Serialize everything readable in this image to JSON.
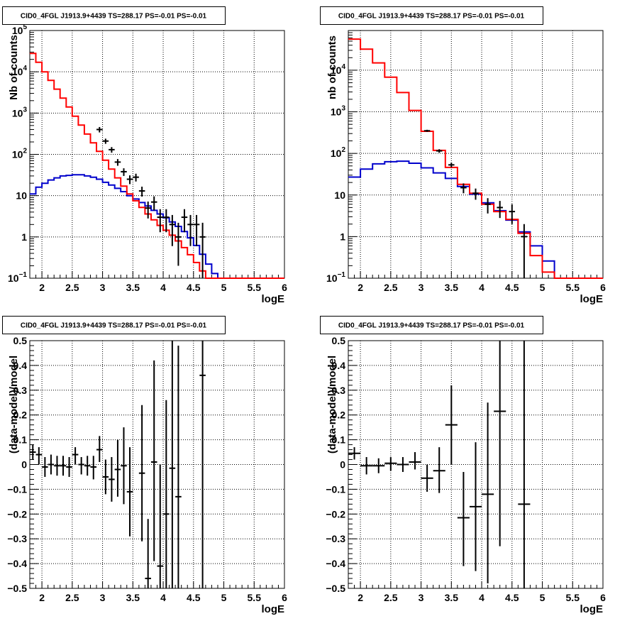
{
  "colors": {
    "data": "#000000",
    "total": "#ff0000",
    "background": "#0000cc",
    "grid": "#000000"
  },
  "chart_data": [
    {
      "id": "top-left",
      "type": "line",
      "title": "CID0_4FGL J1913.9+4439 TS=288.17 PS=-0.01 PS=-0.01",
      "xlabel": "logE",
      "ylabel": "Nb of counts",
      "xlim": [
        1.8,
        6
      ],
      "ylim": [
        0.1,
        100000
      ],
      "yscale": "log",
      "grid": true,
      "x_ticks": [
        "2",
        "2.5",
        "3",
        "3.5",
        "4",
        "4.5",
        "5",
        "5.5",
        "6"
      ],
      "y_ticks": [
        {
          "v": 0.1,
          "b": "10",
          "e": "−1"
        },
        {
          "v": 1,
          "b": "1",
          "e": ""
        },
        {
          "v": 10,
          "b": "10",
          "e": ""
        },
        {
          "v": 100,
          "b": "10",
          "e": "2"
        },
        {
          "v": 1000,
          "b": "10",
          "e": "3"
        },
        {
          "v": 10000,
          "b": "10",
          "e": "4"
        },
        {
          "v": 100000,
          "b": "10",
          "e": "5"
        }
      ],
      "bin_edges": [
        1.8,
        1.9,
        2.0,
        2.1,
        2.2,
        2.3,
        2.4,
        2.5,
        2.6,
        2.7,
        2.8,
        2.9,
        3.0,
        3.1,
        3.2,
        3.3,
        3.4,
        3.5,
        3.6,
        3.7,
        3.8,
        3.9,
        4.0,
        4.1,
        4.2,
        4.3,
        4.4,
        4.5,
        4.6,
        4.7,
        4.8,
        4.9,
        5.0,
        5.1,
        5.2,
        5.3,
        5.4,
        5.5,
        5.6,
        5.7,
        5.8,
        5.9,
        6.0
      ],
      "series": [
        {
          "name": "model",
          "color": "#ff0000",
          "values": [
            28000,
            17000,
            10000,
            6200,
            3800,
            2300,
            1400,
            840,
            510,
            310,
            190,
            118,
            72,
            44,
            27,
            17,
            11,
            7.5,
            5.2,
            3.6,
            2.6,
            1.9,
            1.45,
            1.1,
            0.8,
            0.55,
            0.37,
            0.24,
            0.15,
            0.1,
            0.1,
            0.1,
            0.1,
            0.1,
            0.1,
            0.1,
            0.1,
            0.1,
            0.1,
            0.1,
            0.1,
            0.1
          ]
        },
        {
          "name": "background",
          "color": "#0000cc",
          "values": [
            11,
            16,
            20,
            24,
            27,
            30,
            31,
            32,
            32,
            30,
            28,
            25,
            21,
            18,
            15,
            12.5,
            10,
            8.3,
            6.8,
            5.6,
            4.4,
            3.6,
            2.9,
            2.3,
            1.8,
            1.35,
            0.95,
            0.62,
            0.38,
            0.22,
            0.13,
            0.1,
            0.1,
            0.1,
            0.1,
            0.1,
            0.1,
            0.1,
            0.1,
            0.1,
            0.1,
            0.1
          ]
        }
      ],
      "data_points": [
        {
          "x": 2.95,
          "y": 400,
          "ylo": 340,
          "yhi": 460
        },
        {
          "x": 3.05,
          "y": 210,
          "ylo": 180,
          "yhi": 240
        },
        {
          "x": 3.15,
          "y": 130,
          "ylo": 110,
          "yhi": 150
        },
        {
          "x": 3.25,
          "y": 65,
          "ylo": 53,
          "yhi": 77
        },
        {
          "x": 3.35,
          "y": 38,
          "ylo": 30,
          "yhi": 46
        },
        {
          "x": 3.45,
          "y": 25,
          "ylo": 19,
          "yhi": 31
        },
        {
          "x": 3.55,
          "y": 28,
          "ylo": 22,
          "yhi": 34
        },
        {
          "x": 3.65,
          "y": 13,
          "ylo": 9.5,
          "yhi": 16.5
        },
        {
          "x": 3.75,
          "y": 5,
          "ylo": 2.8,
          "yhi": 7.2
        },
        {
          "x": 3.85,
          "y": 7,
          "ylo": 4.4,
          "yhi": 9.6
        },
        {
          "x": 3.95,
          "y": 3,
          "ylo": 1.3,
          "yhi": 4.7
        },
        {
          "x": 4.05,
          "y": 3,
          "ylo": 1.3,
          "yhi": 4.7
        },
        {
          "x": 4.15,
          "y": 2,
          "ylo": 0.6,
          "yhi": 3.4
        },
        {
          "x": 4.25,
          "y": 1,
          "ylo": 0.2,
          "yhi": 2.2
        },
        {
          "x": 4.35,
          "y": 3,
          "ylo": 1.3,
          "yhi": 4.7
        },
        {
          "x": 4.45,
          "y": 2,
          "ylo": 0.6,
          "yhi": 3.4
        },
        {
          "x": 4.55,
          "y": 2,
          "ylo": 0.6,
          "yhi": 3.4
        },
        {
          "x": 4.65,
          "y": 1,
          "ylo": 0.1,
          "yhi": 2.2
        }
      ]
    },
    {
      "id": "top-right",
      "type": "line",
      "title": "CID0_4FGL J1913.9+4439 TS=288.17 PS=-0.01 PS=-0.01",
      "xlabel": "logE",
      "ylabel": "nb of counts",
      "xlim": [
        1.8,
        6
      ],
      "ylim": [
        0.1,
        90000
      ],
      "yscale": "log",
      "grid": true,
      "x_ticks": [
        "2",
        "2.5",
        "3",
        "3.5",
        "4",
        "4.5",
        "5",
        "5.5",
        "6"
      ],
      "y_ticks": [
        {
          "v": 0.1,
          "b": "10",
          "e": "−1"
        },
        {
          "v": 1,
          "b": "1",
          "e": ""
        },
        {
          "v": 10,
          "b": "10",
          "e": ""
        },
        {
          "v": 100,
          "b": "10",
          "e": "2"
        },
        {
          "v": 1000,
          "b": "10",
          "e": "3"
        },
        {
          "v": 10000,
          "b": "10",
          "e": "4"
        }
      ],
      "bin_edges": [
        1.8,
        2.0,
        2.2,
        2.4,
        2.6,
        2.8,
        3.0,
        3.2,
        3.4,
        3.6,
        3.8,
        4.0,
        4.2,
        4.4,
        4.6,
        4.8,
        5.0,
        5.2,
        5.4,
        5.6,
        5.8,
        6.0
      ],
      "series": [
        {
          "name": "model",
          "color": "#ff0000",
          "values": [
            56000,
            32000,
            15000,
            6800,
            2900,
            1080,
            340,
            118,
            46,
            18,
            11,
            6,
            4,
            2.6,
            1.2,
            0.35,
            0.14,
            0.1,
            0.1,
            0.1,
            0.1
          ]
        },
        {
          "name": "background",
          "color": "#0000cc",
          "values": [
            27,
            42,
            56,
            63,
            65,
            58,
            45,
            34,
            25,
            16,
            10.5,
            6.5,
            4.2,
            2.5,
            1.3,
            0.6,
            0.26,
            0.1,
            0.1,
            0.1,
            0.1
          ]
        }
      ],
      "data_points": [
        {
          "x": 3.1,
          "y": 350,
          "ylo": 330,
          "yhi": 370
        },
        {
          "x": 3.3,
          "y": 115,
          "ylo": 104,
          "yhi": 126
        },
        {
          "x": 3.5,
          "y": 53,
          "ylo": 46,
          "yhi": 60
        },
        {
          "x": 3.7,
          "y": 15,
          "ylo": 11,
          "yhi": 19
        },
        {
          "x": 3.9,
          "y": 11,
          "ylo": 7.7,
          "yhi": 14.3
        },
        {
          "x": 4.1,
          "y": 6,
          "ylo": 3.6,
          "yhi": 8.4
        },
        {
          "x": 4.3,
          "y": 5,
          "ylo": 2.8,
          "yhi": 7.2
        },
        {
          "x": 4.5,
          "y": 4,
          "ylo": 2,
          "yhi": 6
        },
        {
          "x": 4.7,
          "y": 1,
          "ylo": 0.1,
          "yhi": 2
        }
      ]
    },
    {
      "id": "bottom-left",
      "type": "scatter",
      "title": "CID0_4FGL J1913.9+4439 TS=288.17 PS=-0.01 PS=-0.01",
      "xlabel": "logE",
      "ylabel": "(data-model)/model",
      "xlim": [
        1.8,
        6
      ],
      "ylim": [
        -0.5,
        0.5
      ],
      "yscale": "linear",
      "grid": true,
      "x_ticks": [
        "2",
        "2.5",
        "3",
        "3.5",
        "4",
        "4.5",
        "5",
        "5.5",
        "6"
      ],
      "y_ticks": [
        {
          "v": -0.5,
          "b": "−0.5",
          "e": ""
        },
        {
          "v": -0.4,
          "b": "−0.4",
          "e": ""
        },
        {
          "v": -0.3,
          "b": "−0.3",
          "e": ""
        },
        {
          "v": -0.2,
          "b": "−0.2",
          "e": ""
        },
        {
          "v": -0.1,
          "b": "−0.1",
          "e": ""
        },
        {
          "v": 0,
          "b": "0",
          "e": ""
        },
        {
          "v": 0.1,
          "b": "0.1",
          "e": ""
        },
        {
          "v": 0.2,
          "b": "0.2",
          "e": ""
        },
        {
          "v": 0.3,
          "b": "0.3",
          "e": ""
        },
        {
          "v": 0.4,
          "b": "0.4",
          "e": ""
        },
        {
          "v": 0.5,
          "b": "0.5",
          "e": ""
        }
      ],
      "data_points": [
        {
          "x": 1.85,
          "y": 0.05,
          "ylo": 0.02,
          "yhi": 0.08,
          "xw": 0.05
        },
        {
          "x": 1.95,
          "y": 0.04,
          "ylo": 0.0,
          "yhi": 0.07,
          "xw": 0.05
        },
        {
          "x": 2.05,
          "y": -0.01,
          "ylo": -0.05,
          "yhi": 0.03,
          "xw": 0.05
        },
        {
          "x": 2.15,
          "y": 0.0,
          "ylo": -0.04,
          "yhi": 0.04,
          "xw": 0.05
        },
        {
          "x": 2.25,
          "y": -0.005,
          "ylo": -0.045,
          "yhi": 0.035,
          "xw": 0.05
        },
        {
          "x": 2.35,
          "y": -0.005,
          "ylo": -0.045,
          "yhi": 0.035,
          "xw": 0.05
        },
        {
          "x": 2.45,
          "y": -0.01,
          "ylo": -0.05,
          "yhi": 0.03,
          "xw": 0.05
        },
        {
          "x": 2.55,
          "y": 0.04,
          "ylo": 0.0,
          "yhi": 0.07,
          "xw": 0.05
        },
        {
          "x": 2.65,
          "y": 0.0,
          "ylo": -0.04,
          "yhi": 0.03,
          "xw": 0.05
        },
        {
          "x": 2.75,
          "y": -0.005,
          "ylo": -0.045,
          "yhi": 0.035,
          "xw": 0.05
        },
        {
          "x": 2.85,
          "y": -0.01,
          "ylo": -0.06,
          "yhi": 0.035,
          "xw": 0.05
        },
        {
          "x": 2.95,
          "y": 0.06,
          "ylo": 0.01,
          "yhi": 0.115,
          "xw": 0.05
        },
        {
          "x": 3.05,
          "y": -0.05,
          "ylo": -0.12,
          "yhi": 0.02,
          "xw": 0.05
        },
        {
          "x": 3.15,
          "y": -0.06,
          "ylo": -0.15,
          "yhi": 0.03,
          "xw": 0.05
        },
        {
          "x": 3.25,
          "y": -0.02,
          "ylo": -0.13,
          "yhi": 0.1,
          "xw": 0.05
        },
        {
          "x": 3.35,
          "y": -0.005,
          "ylo": -0.16,
          "yhi": 0.15,
          "xw": 0.05
        },
        {
          "x": 3.45,
          "y": -0.11,
          "ylo": -0.29,
          "yhi": 0.07,
          "xw": 0.05
        },
        {
          "x": 3.65,
          "y": -0.035,
          "ylo": -0.31,
          "yhi": 0.24,
          "xw": 0.05
        },
        {
          "x": 3.75,
          "y": -0.46,
          "ylo": -0.67,
          "yhi": -0.22,
          "xw": 0.05
        },
        {
          "x": 3.85,
          "y": 0.01,
          "ylo": -0.39,
          "yhi": 0.42,
          "xw": 0.05
        },
        {
          "x": 3.95,
          "y": -0.41,
          "ylo": -0.82,
          "yhi": 0.0,
          "xw": 0.05
        },
        {
          "x": 4.05,
          "y": -0.2,
          "ylo": -0.66,
          "yhi": 0.26,
          "xw": 0.05
        },
        {
          "x": 4.15,
          "y": -0.015,
          "ylo": -0.55,
          "yhi": 0.52,
          "xw": 0.05
        },
        {
          "x": 4.25,
          "y": -0.13,
          "ylo": -0.74,
          "yhi": 0.48,
          "xw": 0.05
        },
        {
          "x": 4.65,
          "y": 0.36,
          "ylo": -0.6,
          "yhi": 1.3,
          "xw": 0.05
        }
      ]
    },
    {
      "id": "bottom-right",
      "type": "scatter",
      "title": "CID0_4FGL J1913.9+4439 TS=288.17 PS=-0.01 PS=-0.01",
      "xlabel": "logE",
      "ylabel": "(data-model)/model",
      "xlim": [
        1.8,
        6
      ],
      "ylim": [
        -0.5,
        0.5
      ],
      "yscale": "linear",
      "grid": true,
      "x_ticks": [
        "2",
        "2.5",
        "3",
        "3.5",
        "4",
        "4.5",
        "5",
        "5.5",
        "6"
      ],
      "y_ticks": [
        {
          "v": -0.5,
          "b": "−0.5",
          "e": ""
        },
        {
          "v": -0.4,
          "b": "−0.4",
          "e": ""
        },
        {
          "v": -0.3,
          "b": "−0.3",
          "e": ""
        },
        {
          "v": -0.2,
          "b": "−0.2",
          "e": ""
        },
        {
          "v": -0.1,
          "b": "−0.1",
          "e": ""
        },
        {
          "v": 0,
          "b": "0",
          "e": ""
        },
        {
          "v": 0.1,
          "b": "0.1",
          "e": ""
        },
        {
          "v": 0.2,
          "b": "0.2",
          "e": ""
        },
        {
          "v": 0.3,
          "b": "0.3",
          "e": ""
        },
        {
          "v": 0.4,
          "b": "0.4",
          "e": ""
        },
        {
          "v": 0.5,
          "b": "0.5",
          "e": ""
        }
      ],
      "data_points": [
        {
          "x": 1.9,
          "y": 0.045,
          "ylo": 0.02,
          "yhi": 0.07,
          "xw": 0.1
        },
        {
          "x": 2.1,
          "y": -0.005,
          "ylo": -0.04,
          "yhi": 0.03,
          "xw": 0.1
        },
        {
          "x": 2.3,
          "y": -0.005,
          "ylo": -0.035,
          "yhi": 0.025,
          "xw": 0.1
        },
        {
          "x": 2.5,
          "y": 0.005,
          "ylo": -0.025,
          "yhi": 0.03,
          "xw": 0.1
        },
        {
          "x": 2.7,
          "y": 0.0,
          "ylo": -0.03,
          "yhi": 0.03,
          "xw": 0.1
        },
        {
          "x": 2.9,
          "y": 0.01,
          "ylo": -0.02,
          "yhi": 0.05,
          "xw": 0.1
        },
        {
          "x": 3.1,
          "y": -0.055,
          "ylo": -0.11,
          "yhi": 0.0,
          "xw": 0.1
        },
        {
          "x": 3.3,
          "y": -0.025,
          "ylo": -0.115,
          "yhi": 0.07,
          "xw": 0.1
        },
        {
          "x": 3.5,
          "y": 0.16,
          "ylo": 0.0,
          "yhi": 0.32,
          "xw": 0.1
        },
        {
          "x": 3.7,
          "y": -0.215,
          "ylo": -0.41,
          "yhi": -0.03,
          "xw": 0.1
        },
        {
          "x": 3.9,
          "y": -0.17,
          "ylo": -0.43,
          "yhi": 0.09,
          "xw": 0.1
        },
        {
          "x": 4.1,
          "y": -0.12,
          "ylo": -0.48,
          "yhi": 0.25,
          "xw": 0.1
        },
        {
          "x": 4.3,
          "y": 0.215,
          "ylo": -0.33,
          "yhi": 0.76,
          "xw": 0.1
        },
        {
          "x": 4.7,
          "y": -0.16,
          "ylo": -1.2,
          "yhi": 0.88,
          "xw": 0.1
        }
      ]
    }
  ]
}
